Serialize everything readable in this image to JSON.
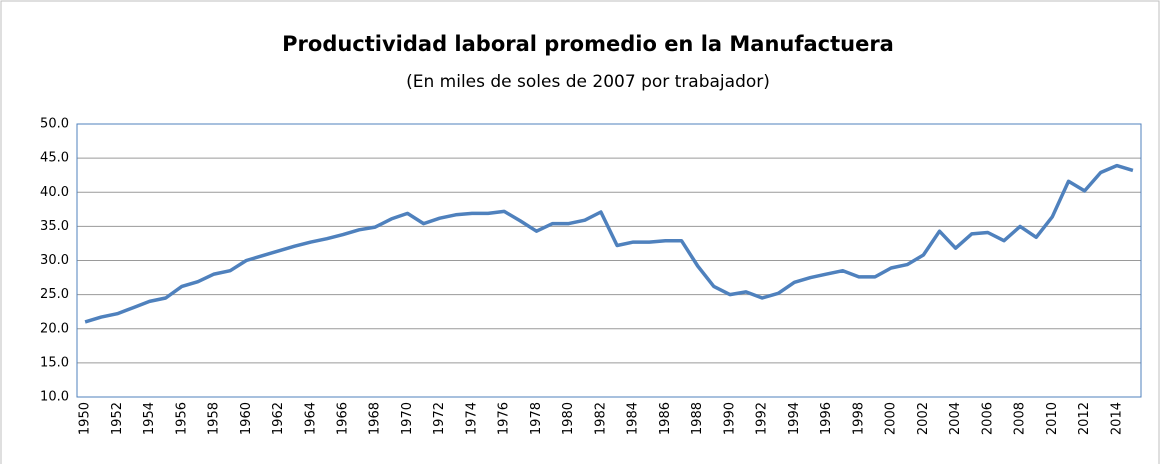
{
  "chart_data": {
    "type": "line",
    "title": "Productividad laboral promedio en la Manufactuera",
    "subtitle": "(En miles de soles de 2007 por trabajador)",
    "categories": [
      "1950",
      null,
      "1952",
      null,
      "1954",
      null,
      "1956",
      null,
      "1958",
      null,
      "1960",
      null,
      "1962",
      null,
      "1964",
      null,
      "1966",
      null,
      "1968",
      null,
      "1970",
      null,
      "1972",
      null,
      "1974",
      null,
      "1976",
      null,
      "1978",
      null,
      "1980",
      null,
      "1982",
      null,
      "1984",
      null,
      "1986",
      null,
      "1988",
      null,
      "1990",
      null,
      "1992",
      null,
      "1994",
      null,
      "1996",
      null,
      "1998",
      null,
      "2000",
      null,
      "2002",
      null,
      "2004",
      null,
      "2006",
      null,
      "2008",
      null,
      "2010",
      null,
      "2012",
      null,
      "2014",
      null
    ],
    "values": [
      21.0,
      21.7,
      22.2,
      23.1,
      24.0,
      24.5,
      26.2,
      26.9,
      28.0,
      28.5,
      30.0,
      30.7,
      31.4,
      32.1,
      32.7,
      33.2,
      33.8,
      34.5,
      34.9,
      36.1,
      36.9,
      35.4,
      36.2,
      36.7,
      36.9,
      36.9,
      37.2,
      35.8,
      34.3,
      35.4,
      35.4,
      35.9,
      37.1,
      32.2,
      32.7,
      32.7,
      32.9,
      32.9,
      29.2,
      26.2,
      25.0,
      25.4,
      24.5,
      25.2,
      26.8,
      27.5,
      28.0,
      28.5,
      27.6,
      27.6,
      28.9,
      29.4,
      30.8,
      34.3,
      31.8,
      33.9,
      34.1,
      32.9,
      35.0,
      33.4,
      36.4,
      41.6,
      40.2,
      42.9,
      43.9,
      43.2
    ],
    "color": "#4f81bd",
    "ylim": [
      10,
      50
    ],
    "yticks": [
      {
        "value": 10,
        "label": "10.0"
      },
      {
        "value": 15,
        "label": "15.0"
      },
      {
        "value": 20,
        "label": "20.0"
      },
      {
        "value": 25,
        "label": "25.0"
      },
      {
        "value": 30,
        "label": "30.0"
      },
      {
        "value": 35,
        "label": "35.0"
      },
      {
        "value": 40,
        "label": "40.0"
      },
      {
        "value": 45,
        "label": "45.0"
      },
      {
        "value": 50,
        "label": "50.0"
      }
    ],
    "grid": true
  }
}
